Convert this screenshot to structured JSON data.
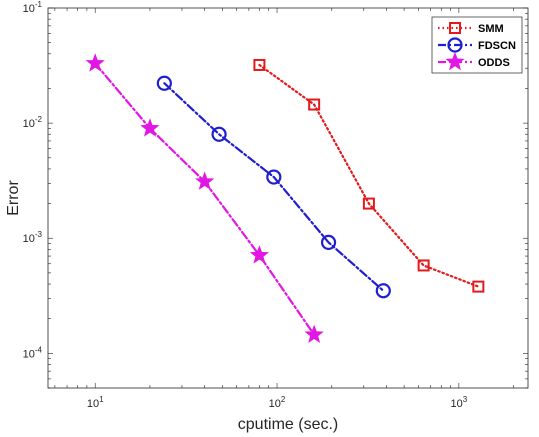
{
  "chart_data": {
    "type": "line",
    "title": "",
    "xlabel": "cputime (sec.)",
    "ylabel": "Error",
    "xscale": "log",
    "yscale": "log",
    "xlim": [
      5.5,
      2400
    ],
    "ylim": [
      5e-05,
      0.1
    ],
    "x_ticks": [
      {
        "value": 10,
        "base": "10",
        "exp": "1"
      },
      {
        "value": 100,
        "base": "10",
        "exp": "2"
      },
      {
        "value": 1000,
        "base": "10",
        "exp": "3"
      }
    ],
    "y_ticks": [
      {
        "value": 0.0001,
        "base": "10",
        "exp": "-4"
      },
      {
        "value": 0.001,
        "base": "10",
        "exp": "-3"
      },
      {
        "value": 0.01,
        "base": "10",
        "exp": "-2"
      },
      {
        "value": 0.1,
        "base": "10",
        "exp": "-1"
      }
    ],
    "grid": false,
    "legend_position": "top-right",
    "series": [
      {
        "name": "SMM",
        "color": "#e31a1c",
        "line_style": "dotted",
        "marker": "square",
        "x": [
          80,
          160,
          320,
          640,
          1280
        ],
        "y": [
          0.032,
          0.0145,
          0.002,
          0.00058,
          0.00038
        ]
      },
      {
        "name": "FDSCN",
        "color": "#1f1fd0",
        "line_style": "dashdot",
        "marker": "circle",
        "x": [
          24,
          48,
          96,
          192,
          384
        ],
        "y": [
          0.0222,
          0.008,
          0.0034,
          0.00092,
          0.00035
        ]
      },
      {
        "name": "ODDS",
        "color": "#e317e3",
        "line_style": "dashdot",
        "marker": "star",
        "x": [
          10,
          20,
          40,
          80,
          160
        ],
        "y": [
          0.033,
          0.009,
          0.0031,
          0.00071,
          0.000145
        ]
      }
    ]
  }
}
